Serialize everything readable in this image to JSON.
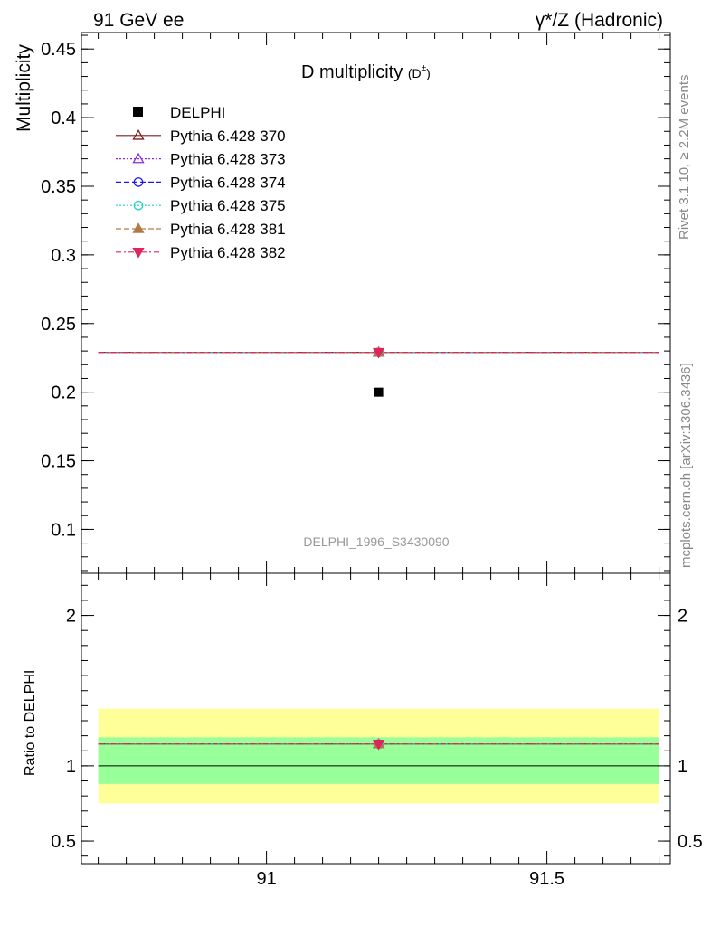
{
  "header": {
    "left": "91 GeV ee",
    "right": "γ*/Z (Hadronic)"
  },
  "side_labels": {
    "rivet": "Rivet 3.1.10, ≥ 2.2M events",
    "mcplots": "mcplots.cern.ch [arXiv:1306.3436]"
  },
  "chart_data": [
    {
      "type": "scatter",
      "panel": "main",
      "title": "D multiplicity",
      "title_sub": "(D",
      "title_sup": "±",
      "title_sub_close": ")",
      "ylabel": "Multiplicity",
      "watermark": "DELPHI_1996_S3430090",
      "xlim": [
        90.67,
        91.72
      ],
      "ylim": [
        0.068,
        0.462
      ],
      "yticks": [
        0.1,
        0.15,
        0.2,
        0.25,
        0.3,
        0.35,
        0.4,
        0.45
      ],
      "ytick_labels": [
        "0.1",
        "0.15",
        "0.2",
        "0.25",
        "0.3",
        "0.35",
        "0.4",
        "0.45"
      ],
      "legend_position": "top-left",
      "data": {
        "name": "DELPHI",
        "x": 91.2,
        "y": 0.2,
        "color": "#000000"
      },
      "series": [
        {
          "name": "Pythia 6.428 370",
          "color": "#7a1f1f",
          "marker": "triangle-open",
          "dash": "solid",
          "value": 0.229
        },
        {
          "name": "Pythia 6.428 373",
          "color": "#8a2be2",
          "marker": "triangle-open",
          "dash": "dotted",
          "value": 0.229
        },
        {
          "name": "Pythia 6.428 374",
          "color": "#1a1ae6",
          "marker": "circle-open",
          "dash": "dashed",
          "value": 0.229
        },
        {
          "name": "Pythia 6.428 375",
          "color": "#1fd3c6",
          "marker": "circle-open",
          "dash": "dotted",
          "value": 0.229
        },
        {
          "name": "Pythia 6.428 381",
          "color": "#b07a48",
          "marker": "triangle-filled",
          "dash": "dashed",
          "value": 0.229
        },
        {
          "name": "Pythia 6.428 382",
          "color": "#e0245e",
          "marker": "triangle-down-filled",
          "dash": "dashdot",
          "value": 0.229
        }
      ],
      "x_range": [
        90.7,
        91.7
      ]
    },
    {
      "type": "scatter",
      "panel": "ratio",
      "ylabel": "Ratio to DELPHI",
      "xlabel": "",
      "xlim": [
        90.67,
        91.72
      ],
      "ylim": [
        0.35,
        2.28
      ],
      "yticks": [
        0.5,
        1,
        2
      ],
      "ytick_labels": [
        "0.5",
        "1",
        "2"
      ],
      "xticks": [
        91,
        91.5
      ],
      "xtick_labels": [
        "91",
        "91.5"
      ],
      "bands": [
        {
          "label": "2 sigma",
          "low": 0.75,
          "high": 1.38,
          "color": "#ffff99"
        },
        {
          "label": "1 sigma",
          "low": 0.88,
          "high": 1.19,
          "color": "#99ff99"
        }
      ],
      "reference": 1.0,
      "ratio_value": 1.145
    }
  ]
}
